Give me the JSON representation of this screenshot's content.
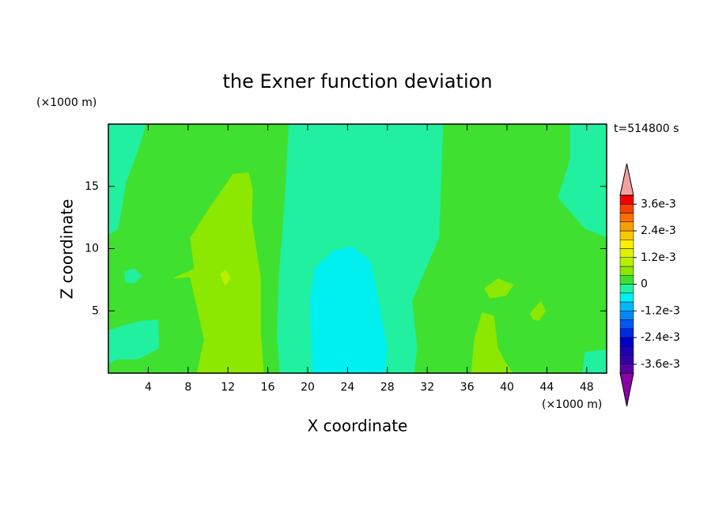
{
  "chart_data": {
    "type": "contour",
    "title": "the Exner function deviation",
    "x_label": "X coordinate",
    "y_label": "Z coordinate",
    "x_unit": "(×1000 m)",
    "y_unit": "(×1000 m)",
    "time_label": "t=514800 s",
    "xlim": [
      0,
      50
    ],
    "ylim": [
      0,
      20
    ],
    "xticks": [
      4,
      8,
      12,
      16,
      20,
      24,
      28,
      32,
      36,
      40,
      44,
      48
    ],
    "yticks": [
      5,
      10,
      15
    ],
    "levels": [
      -0.004,
      -0.0036,
      -0.0032,
      -0.0028,
      -0.0024,
      -0.002,
      -0.0016,
      -0.0012,
      -0.0008,
      -0.0004,
      0,
      0.0004,
      0.0008,
      0.0012,
      0.0016,
      0.002,
      0.0024,
      0.0028,
      0.0032,
      0.0036,
      0.004
    ],
    "colors": [
      "#5a00a0",
      "#3200a8",
      "#1e00b8",
      "#0000c8",
      "#0028e0",
      "#0058f0",
      "#0088f8",
      "#00b8f8",
      "#00f0f0",
      "#20f0a0",
      "#40e030",
      "#8ce800",
      "#b8f000",
      "#e0f000",
      "#f8f000",
      "#f8c800",
      "#f8a000",
      "#f87000",
      "#f84000",
      "#f00000"
    ],
    "extend_colors": [
      "#8c00a8",
      "#f4a0a0"
    ],
    "colorbar_ticks": [
      {
        "value": -0.0036,
        "label": "-3.6e-3"
      },
      {
        "value": -0.0024,
        "label": "-2.4e-3"
      },
      {
        "value": -0.0012,
        "label": "-1.2e-3"
      },
      0,
      {
        "value": 0.0012,
        "label": "1.2e-3"
      },
      {
        "value": 0.0024,
        "label": "2.4e-3"
      },
      {
        "value": 0.0036,
        "label": "3.6e-3"
      }
    ]
  }
}
